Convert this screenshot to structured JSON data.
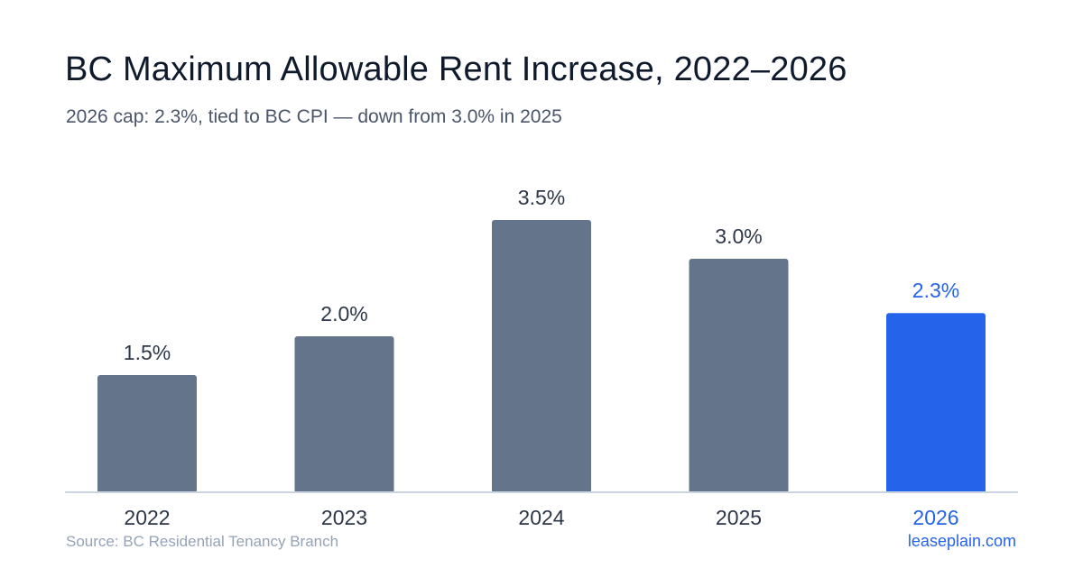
{
  "chart_data": {
    "type": "bar",
    "title": "BC Maximum Allowable Rent Increase, 2022–2026",
    "subtitle": "2026 cap: 2.3%, tied to BC CPI — down from 3.0% in 2025",
    "categories": [
      "2022",
      "2023",
      "2024",
      "2025",
      "2026"
    ],
    "values": [
      1.5,
      2.0,
      3.5,
      3.0,
      2.3
    ],
    "data_labels": [
      "1.5%",
      "2.0%",
      "3.5%",
      "3.0%",
      "2.3%"
    ],
    "highlight_index": 4,
    "ylim": [
      0,
      3.5
    ],
    "grid": false,
    "colors": {
      "bar": "#64748b",
      "highlight": "#2563eb",
      "label": "#2d3748",
      "axis": "#cbd5e1"
    }
  },
  "footer": {
    "source": "Source: BC Residential Tenancy Branch",
    "brand": "leaseplain.com"
  }
}
